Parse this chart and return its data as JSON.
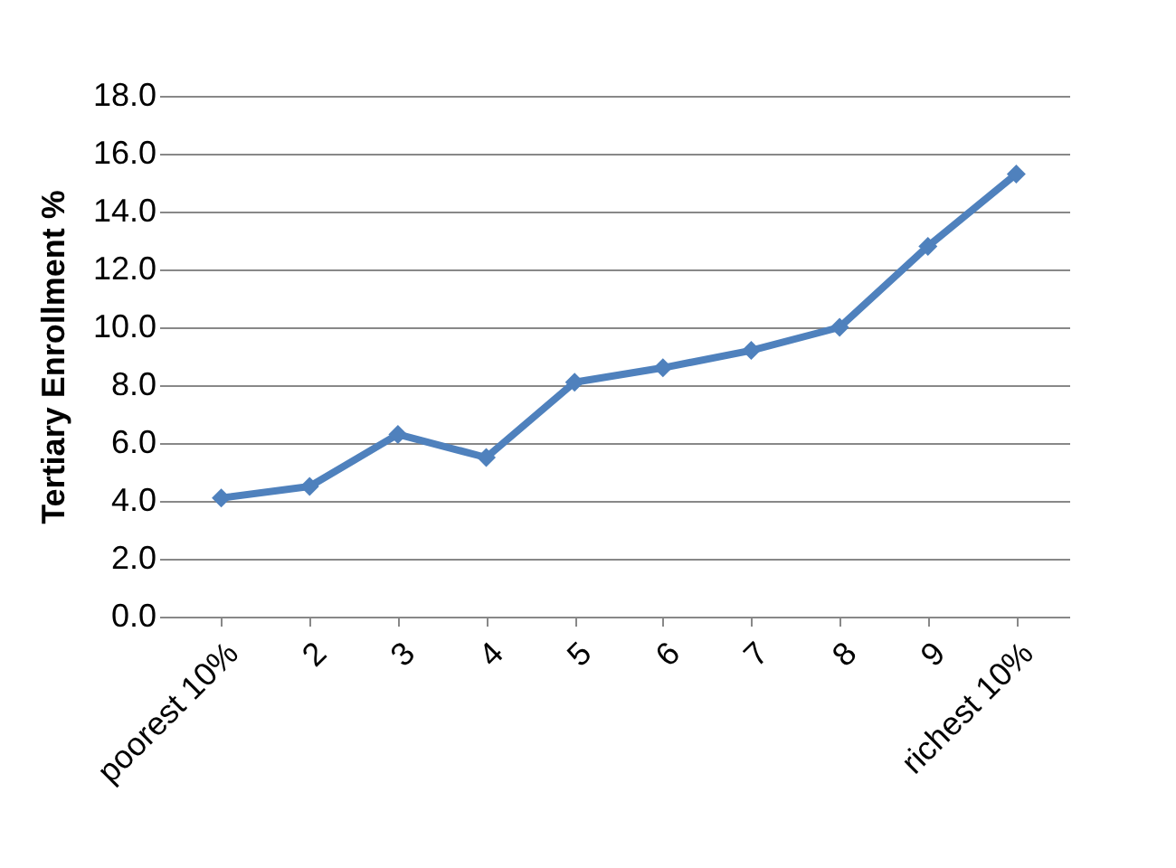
{
  "chart_data": {
    "type": "line",
    "ylabel": "Tertiary Enrollment %",
    "categories": [
      "poorest 10%",
      "2",
      "3",
      "4",
      "5",
      "6",
      "7",
      "8",
      "9",
      "richest 10%"
    ],
    "series": [
      {
        "color": "#4f81bd",
        "values": [
          4.1,
          4.5,
          6.3,
          5.5,
          8.1,
          8.6,
          9.2,
          10.0,
          12.8,
          15.3
        ]
      }
    ],
    "ylim": [
      0,
      18
    ],
    "yticks": [
      {
        "value": 0,
        "label": "0.0"
      },
      {
        "value": 2,
        "label": "2.0"
      },
      {
        "value": 4,
        "label": "4.0"
      },
      {
        "value": 6,
        "label": "6.0"
      },
      {
        "value": 8,
        "label": "8.0"
      },
      {
        "value": 10,
        "label": "10.0"
      },
      {
        "value": 12,
        "label": "12.0"
      },
      {
        "value": 14,
        "label": "14.0"
      },
      {
        "value": 16,
        "label": "16.0"
      },
      {
        "value": 18,
        "label": "18.0"
      }
    ],
    "grid": "y",
    "marker": "diamond",
    "line_style": "solid"
  }
}
